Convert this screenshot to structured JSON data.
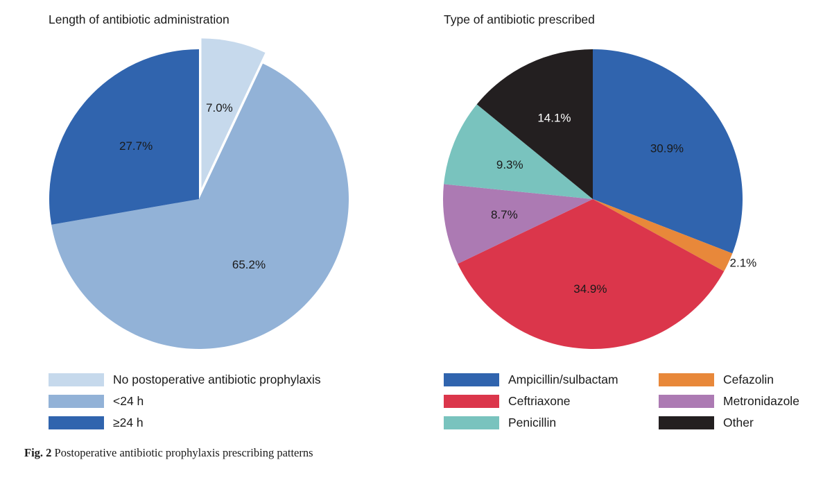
{
  "chart_data": [
    {
      "type": "pie",
      "title": "Length of antibiotic administration",
      "slices": [
        {
          "label": "No postoperative antibiotic prophylaxis",
          "value": 7.0,
          "display": "7.0%",
          "color": "#c6d9ec",
          "exploded": true
        },
        {
          "label": "<24 h",
          "value": 65.2,
          "display": "65.2%",
          "color": "#92b2d7",
          "exploded": false
        },
        {
          "label": "≥24 h",
          "value": 27.7,
          "display": "27.7%",
          "color": "#3064ae",
          "exploded": false
        }
      ],
      "legend": [
        {
          "label": "No postoperative antibiotic prophylaxis",
          "color": "#c6d9ec"
        },
        {
          "label": "<24 h",
          "color": "#92b2d7"
        },
        {
          "label": "≥24 h",
          "color": "#3064ae"
        }
      ],
      "legend_placement": "bottom-left"
    },
    {
      "type": "pie",
      "title": "Type of antibiotic prescribed",
      "slices": [
        {
          "label": "Ampicillin/sulbactam",
          "value": 30.9,
          "display": "30.9%",
          "color": "#3064ae"
        },
        {
          "label": "Cefazolin",
          "value": 2.1,
          "display": "2.1%",
          "color": "#e8883a"
        },
        {
          "label": "Ceftriaxone",
          "value": 34.9,
          "display": "34.9%",
          "color": "#db364b"
        },
        {
          "label": "Metronidazole",
          "value": 8.7,
          "display": "8.7%",
          "color": "#ac7ab3"
        },
        {
          "label": "Penicillin",
          "value": 9.3,
          "display": "9.3%",
          "color": "#79c3be"
        },
        {
          "label": "Other",
          "value": 14.1,
          "display": "14.1%",
          "color": "#231f20"
        }
      ],
      "legend": [
        {
          "label": "Ampicillin/sulbactam",
          "color": "#3064ae"
        },
        {
          "label": "Cefazolin",
          "color": "#e8883a"
        },
        {
          "label": "Ceftriaxone",
          "color": "#db364b"
        },
        {
          "label": "Metronidazole",
          "color": "#ac7ab3"
        },
        {
          "label": "Penicillin",
          "color": "#79c3be"
        },
        {
          "label": "Other",
          "color": "#231f20"
        }
      ],
      "legend_placement": "bottom-right"
    }
  ],
  "caption": {
    "label": "Fig. 2",
    "text": "Postoperative antibiotic prophylaxis prescribing patterns"
  }
}
